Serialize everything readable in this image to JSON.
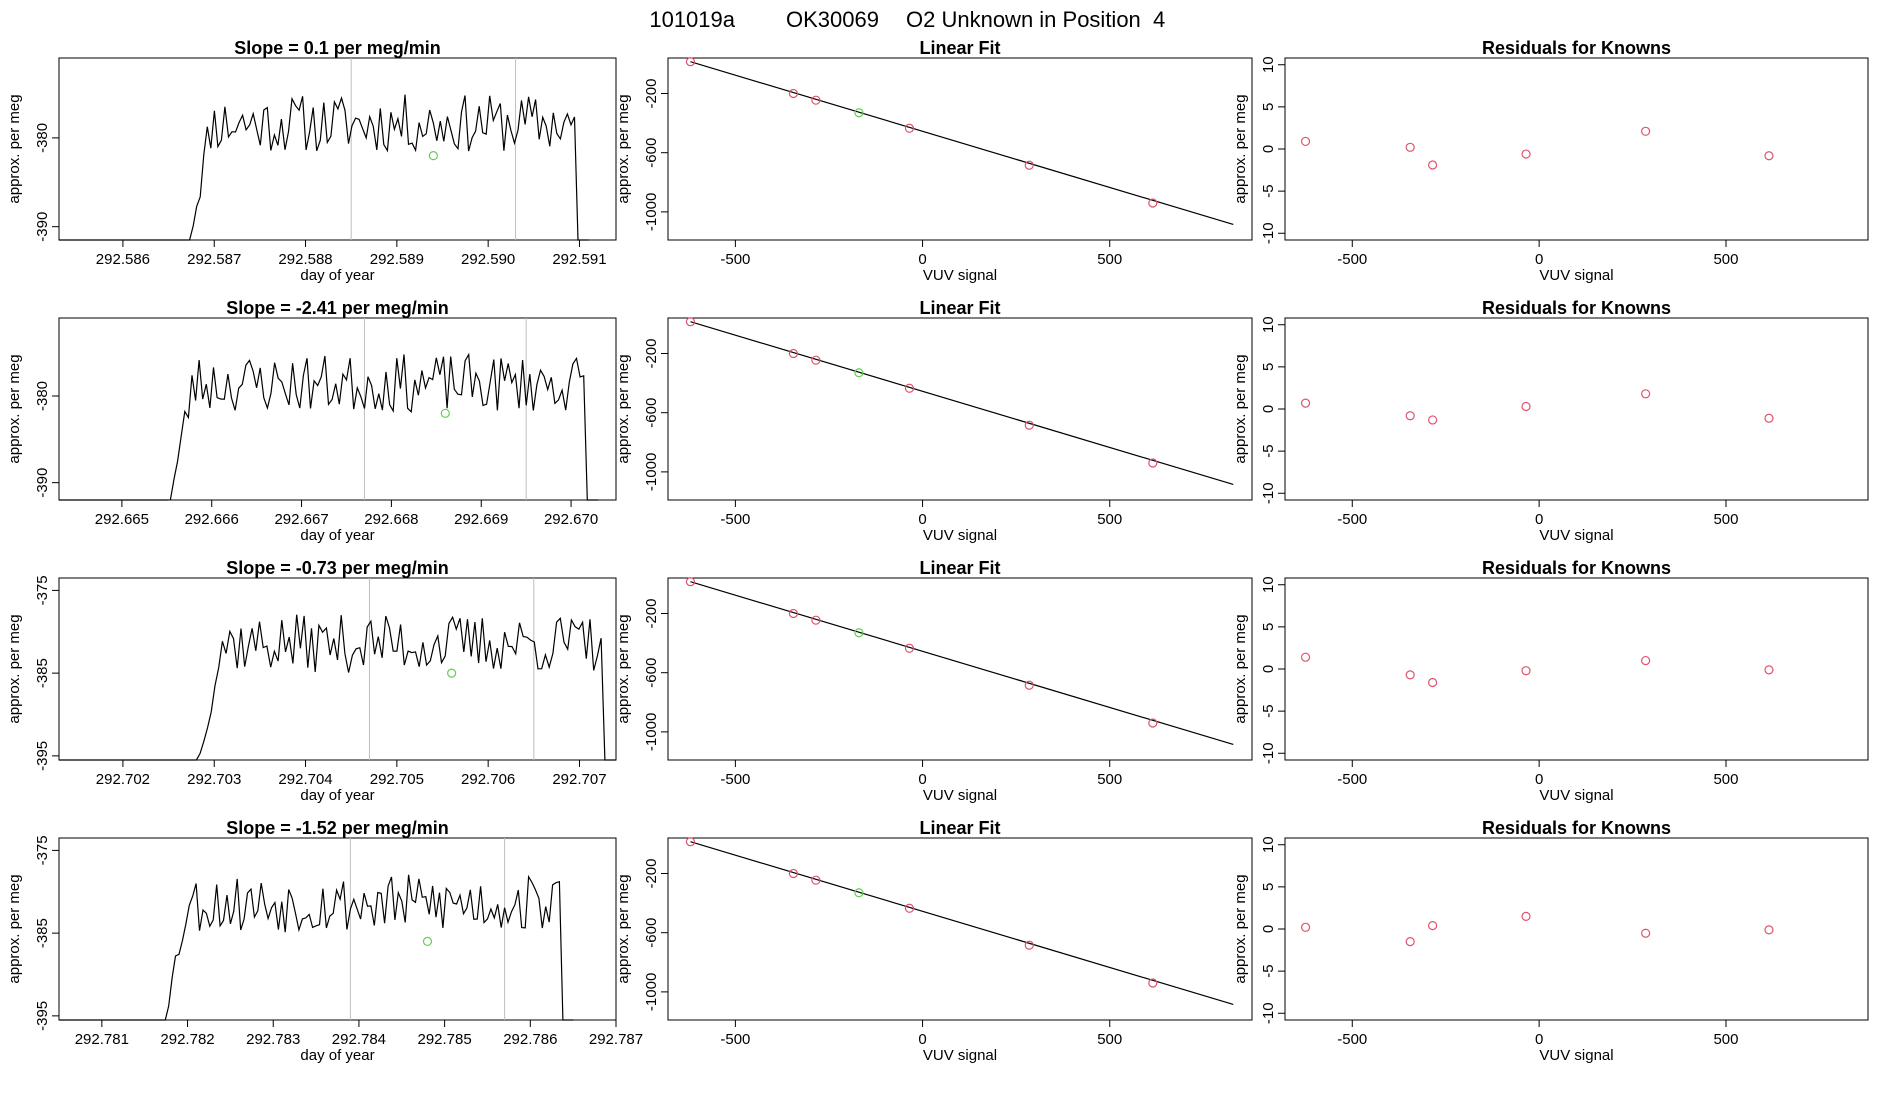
{
  "figure": {
    "title_parts": [
      "101019a",
      "OK30069",
      "O2 Unknown in Position  4"
    ]
  },
  "chart_data": [
    {
      "type": "line",
      "row": 1,
      "col": 1,
      "title": "Slope =  0.1  per meg/min",
      "xlabel": "day of year",
      "ylabel": "approx. per meg",
      "xlim": [
        292.5853,
        292.5914
      ],
      "ylim": [
        -391.5,
        -371.0
      ],
      "xticks": [
        292.586,
        292.587,
        292.588,
        292.589,
        292.59,
        292.591
      ],
      "xtick_labels": [
        "292.586",
        "292.587",
        "292.588",
        "292.589",
        "292.590",
        "292.591"
      ],
      "yticks": [
        -380,
        -390
      ],
      "ytick_labels": [
        "-380",
        "-390"
      ],
      "vlines": [
        292.5885,
        292.5903
      ],
      "trace_start": 292.5867,
      "trace_end": 292.5911,
      "highlight_point": {
        "x": 292.5894,
        "y": -382.0
      },
      "seed": 11
    },
    {
      "type": "scatter",
      "row": 1,
      "col": 2,
      "title": "Linear Fit",
      "xlabel": "VUV signal",
      "ylabel": "approx. per meg",
      "xlim": [
        -680,
        880
      ],
      "ylim": [
        -1190,
        40
      ],
      "xticks": [
        -500,
        0,
        500
      ],
      "xtick_labels": [
        "-500",
        "0",
        "500"
      ],
      "yticks": [
        -200,
        -600,
        -1000
      ],
      "ytick_labels": [
        "-200",
        "-600",
        "-1000"
      ],
      "fit_line": {
        "x1": -620,
        "y1": 15,
        "x2": 830,
        "y2": -1085
      },
      "knowns": [
        {
          "x": -620,
          "y": 15
        },
        {
          "x": -345,
          "y": -200
        },
        {
          "x": -285,
          "y": -245
        },
        {
          "x": -35,
          "y": -435
        },
        {
          "x": 285,
          "y": -685
        },
        {
          "x": 615,
          "y": -940
        }
      ],
      "unknown": {
        "x": -170,
        "y": -330
      }
    },
    {
      "type": "scatter",
      "row": 1,
      "col": 3,
      "title": "Residuals for Knowns",
      "xlabel": "VUV signal",
      "ylabel": "approx. per meg",
      "xlim": [
        -680,
        880
      ],
      "ylim": [
        -10.8,
        10.8
      ],
      "xticks": [
        -500,
        0,
        500
      ],
      "xtick_labels": [
        "-500",
        "0",
        "500"
      ],
      "yticks": [
        10,
        5,
        0,
        -5,
        -10
      ],
      "ytick_labels": [
        "10",
        "5",
        "0",
        "-5",
        "-10"
      ],
      "points": [
        {
          "x": -625,
          "y": 0.9
        },
        {
          "x": -345,
          "y": 0.2
        },
        {
          "x": -285,
          "y": -1.9
        },
        {
          "x": -35,
          "y": -0.6
        },
        {
          "x": 285,
          "y": 2.1
        },
        {
          "x": 615,
          "y": -0.8
        }
      ]
    },
    {
      "type": "line",
      "row": 2,
      "col": 1,
      "title": "Slope =  -2.41  per meg/min",
      "xlabel": "day of year",
      "ylabel": "approx. per meg",
      "xlim": [
        292.6643,
        292.6705
      ],
      "ylim": [
        -392.0,
        -371.0
      ],
      "xticks": [
        292.665,
        292.666,
        292.667,
        292.668,
        292.669,
        292.67
      ],
      "xtick_labels": [
        "292.665",
        "292.666",
        "292.667",
        "292.668",
        "292.669",
        "292.670"
      ],
      "yticks": [
        -380,
        -390
      ],
      "ytick_labels": [
        "-380",
        "-390"
      ],
      "vlines": [
        292.6677,
        292.6695
      ],
      "trace_start": 292.6655,
      "trace_end": 292.6703,
      "highlight_point": {
        "x": 292.6686,
        "y": -382.0
      },
      "seed": 23
    },
    {
      "type": "scatter",
      "row": 2,
      "col": 2,
      "title": "Linear Fit",
      "xlabel": "VUV signal",
      "ylabel": "approx. per meg",
      "xlim": [
        -680,
        880
      ],
      "ylim": [
        -1190,
        40
      ],
      "xticks": [
        -500,
        0,
        500
      ],
      "xtick_labels": [
        "-500",
        "0",
        "500"
      ],
      "yticks": [
        -200,
        -600,
        -1000
      ],
      "ytick_labels": [
        "-200",
        "-600",
        "-1000"
      ],
      "fit_line": {
        "x1": -620,
        "y1": 15,
        "x2": 830,
        "y2": -1085
      },
      "knowns": [
        {
          "x": -620,
          "y": 15
        },
        {
          "x": -345,
          "y": -200
        },
        {
          "x": -285,
          "y": -245
        },
        {
          "x": -35,
          "y": -435
        },
        {
          "x": 285,
          "y": -685
        },
        {
          "x": 615,
          "y": -940
        }
      ],
      "unknown": {
        "x": -170,
        "y": -330
      }
    },
    {
      "type": "scatter",
      "row": 2,
      "col": 3,
      "title": "Residuals for Knowns",
      "xlabel": "VUV signal",
      "ylabel": "approx. per meg",
      "xlim": [
        -680,
        880
      ],
      "ylim": [
        -10.8,
        10.8
      ],
      "xticks": [
        -500,
        0,
        500
      ],
      "xtick_labels": [
        "-500",
        "0",
        "500"
      ],
      "yticks": [
        10,
        5,
        0,
        -5,
        -10
      ],
      "ytick_labels": [
        "10",
        "5",
        "0",
        "-5",
        "-10"
      ],
      "points": [
        {
          "x": -625,
          "y": 0.7
        },
        {
          "x": -345,
          "y": -0.8
        },
        {
          "x": -285,
          "y": -1.3
        },
        {
          "x": -35,
          "y": 0.3
        },
        {
          "x": 285,
          "y": 1.8
        },
        {
          "x": 615,
          "y": -1.1
        }
      ]
    },
    {
      "type": "line",
      "row": 3,
      "col": 1,
      "title": "Slope =  -0.73  per meg/min",
      "xlabel": "day of year",
      "ylabel": "approx. per meg",
      "xlim": [
        292.7013,
        292.7074
      ],
      "ylim": [
        -395.5,
        -373.5
      ],
      "xticks": [
        292.702,
        292.703,
        292.704,
        292.705,
        292.706,
        292.707
      ],
      "xtick_labels": [
        "292.702",
        "292.703",
        "292.704",
        "292.705",
        "292.706",
        "292.707"
      ],
      "yticks": [
        -375,
        -385,
        -395
      ],
      "ytick_labels": [
        "-375",
        "-385",
        "-395"
      ],
      "vlines": [
        292.7047,
        292.7065
      ],
      "trace_start": 292.7028,
      "trace_end": 292.7074,
      "highlight_point": {
        "x": 292.7056,
        "y": -385.0
      },
      "seed": 37
    },
    {
      "type": "scatter",
      "row": 3,
      "col": 2,
      "title": "Linear Fit",
      "xlabel": "VUV signal",
      "ylabel": "approx. per meg",
      "xlim": [
        -680,
        880
      ],
      "ylim": [
        -1190,
        40
      ],
      "xticks": [
        -500,
        0,
        500
      ],
      "xtick_labels": [
        "-500",
        "0",
        "500"
      ],
      "yticks": [
        -200,
        -600,
        -1000
      ],
      "ytick_labels": [
        "-200",
        "-600",
        "-1000"
      ],
      "fit_line": {
        "x1": -620,
        "y1": 15,
        "x2": 830,
        "y2": -1085
      },
      "knowns": [
        {
          "x": -620,
          "y": 15
        },
        {
          "x": -345,
          "y": -200
        },
        {
          "x": -285,
          "y": -245
        },
        {
          "x": -35,
          "y": -435
        },
        {
          "x": 285,
          "y": -685
        },
        {
          "x": 615,
          "y": -940
        }
      ],
      "unknown": {
        "x": -170,
        "y": -330
      }
    },
    {
      "type": "scatter",
      "row": 3,
      "col": 3,
      "title": "Residuals for Knowns",
      "xlabel": "VUV signal",
      "ylabel": "approx. per meg",
      "xlim": [
        -680,
        880
      ],
      "ylim": [
        -10.8,
        10.8
      ],
      "xticks": [
        -500,
        0,
        500
      ],
      "xtick_labels": [
        "-500",
        "0",
        "500"
      ],
      "yticks": [
        10,
        5,
        0,
        -5,
        -10
      ],
      "ytick_labels": [
        "10",
        "5",
        "0",
        "-5",
        "-10"
      ],
      "points": [
        {
          "x": -625,
          "y": 1.4
        },
        {
          "x": -345,
          "y": -0.7
        },
        {
          "x": -285,
          "y": -1.6
        },
        {
          "x": -35,
          "y": -0.2
        },
        {
          "x": 285,
          "y": 1.0
        },
        {
          "x": 615,
          "y": -0.1
        }
      ]
    },
    {
      "type": "line",
      "row": 4,
      "col": 1,
      "title": "Slope =  -1.52  per meg/min",
      "xlabel": "day of year",
      "ylabel": "approx. per meg",
      "xlim": [
        292.7805,
        292.787
      ],
      "ylim": [
        -395.5,
        -373.5
      ],
      "xticks": [
        292.781,
        292.782,
        292.783,
        292.784,
        292.785,
        292.786,
        292.787
      ],
      "xtick_labels": [
        "292.781",
        "292.782",
        "292.783",
        "292.784",
        "292.785",
        "292.786",
        "292.787"
      ],
      "yticks": [
        -375,
        -385,
        -395
      ],
      "ytick_labels": [
        "-375",
        "-385",
        "-395"
      ],
      "vlines": [
        292.7839,
        292.7857
      ],
      "trace_start": 292.7817,
      "trace_end": 292.7865,
      "highlight_point": {
        "x": 292.7848,
        "y": -386.0
      },
      "seed": 53
    },
    {
      "type": "scatter",
      "row": 4,
      "col": 2,
      "title": "Linear Fit",
      "xlabel": "VUV signal",
      "ylabel": "approx. per meg",
      "xlim": [
        -680,
        880
      ],
      "ylim": [
        -1190,
        40
      ],
      "xticks": [
        -500,
        0,
        500
      ],
      "xtick_labels": [
        "-500",
        "0",
        "500"
      ],
      "yticks": [
        -200,
        -600,
        -1000
      ],
      "ytick_labels": [
        "-200",
        "-600",
        "-1000"
      ],
      "fit_line": {
        "x1": -620,
        "y1": 15,
        "x2": 830,
        "y2": -1085
      },
      "knowns": [
        {
          "x": -620,
          "y": 15
        },
        {
          "x": -345,
          "y": -200
        },
        {
          "x": -285,
          "y": -245
        },
        {
          "x": -35,
          "y": -435
        },
        {
          "x": 285,
          "y": -685
        },
        {
          "x": 615,
          "y": -940
        }
      ],
      "unknown": {
        "x": -170,
        "y": -330
      }
    },
    {
      "type": "scatter",
      "row": 4,
      "col": 3,
      "title": "Residuals for Knowns",
      "xlabel": "VUV signal",
      "ylabel": "approx. per meg",
      "xlim": [
        -680,
        880
      ],
      "ylim": [
        -10.8,
        10.8
      ],
      "xticks": [
        -500,
        0,
        500
      ],
      "xtick_labels": [
        "-500",
        "0",
        "500"
      ],
      "yticks": [
        10,
        5,
        0,
        -5,
        -10
      ],
      "ytick_labels": [
        "10",
        "5",
        "0",
        "-5",
        "-10"
      ],
      "points": [
        {
          "x": -625,
          "y": 0.2
        },
        {
          "x": -345,
          "y": -1.5
        },
        {
          "x": -285,
          "y": 0.4
        },
        {
          "x": -35,
          "y": 1.5
        },
        {
          "x": 285,
          "y": -0.5
        },
        {
          "x": 615,
          "y": -0.1
        }
      ]
    }
  ],
  "colors": {
    "axis": "#000000",
    "trace": "#000000",
    "vline": "#bebebe",
    "known_points": "#df536b",
    "unknown_point": "#61d04f"
  }
}
